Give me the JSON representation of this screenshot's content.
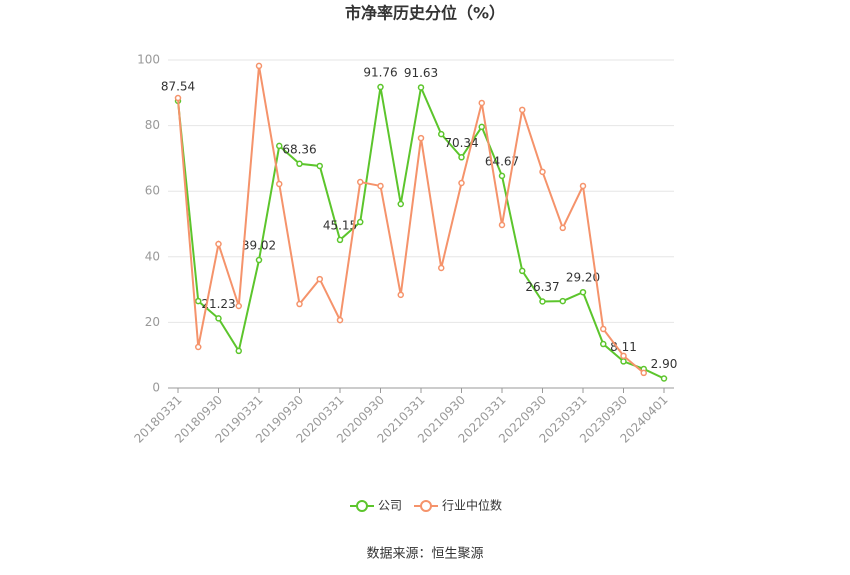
{
  "chart_data": {
    "type": "line",
    "title": "市净率历史分位（%）",
    "source": "数据来源：恒生聚源",
    "categories": [
      "20180331",
      null,
      "20180930",
      null,
      "20190331",
      null,
      "20190930",
      null,
      "20200331",
      null,
      "20200930",
      null,
      "20210331",
      null,
      "20210930",
      null,
      "20220331",
      null,
      "20220930",
      null,
      "20230331",
      null,
      "20230930",
      null,
      "20240401"
    ],
    "series": [
      {
        "name": "公司",
        "color": "#5cc52c",
        "values": [
          87.54,
          26.5,
          21.23,
          11.3,
          39.02,
          73.8,
          68.36,
          67.7,
          45.15,
          50.6,
          91.76,
          56.1,
          91.63,
          77.4,
          70.34,
          79.6,
          64.67,
          35.7,
          26.37,
          26.5,
          29.2,
          13.4,
          8.11,
          5.8,
          2.9
        ],
        "value_labels": [
          "87.54",
          null,
          "21.23",
          null,
          "39.02",
          null,
          "68.36",
          null,
          "45.15",
          null,
          "91.76",
          null,
          "91.63",
          null,
          "70.34",
          null,
          "64.67",
          null,
          "26.37",
          null,
          "29.20",
          null,
          "8.11",
          null,
          "2.90"
        ]
      },
      {
        "name": "行业中位数",
        "color": "#f5936b",
        "values": [
          88.4,
          12.5,
          43.9,
          25,
          98.2,
          62.2,
          25.6,
          33.2,
          20.7,
          62.8,
          61.6,
          28.4,
          76.2,
          36.6,
          62.5,
          86.9,
          49.7,
          84.8,
          65.9,
          48.8,
          61.6,
          18,
          9.8,
          4.6,
          null
        ]
      }
    ],
    "ylim": [
      0,
      100
    ],
    "yticks": [
      0,
      20,
      40,
      60,
      80,
      100
    ],
    "grid": true,
    "legend": "bottom"
  }
}
